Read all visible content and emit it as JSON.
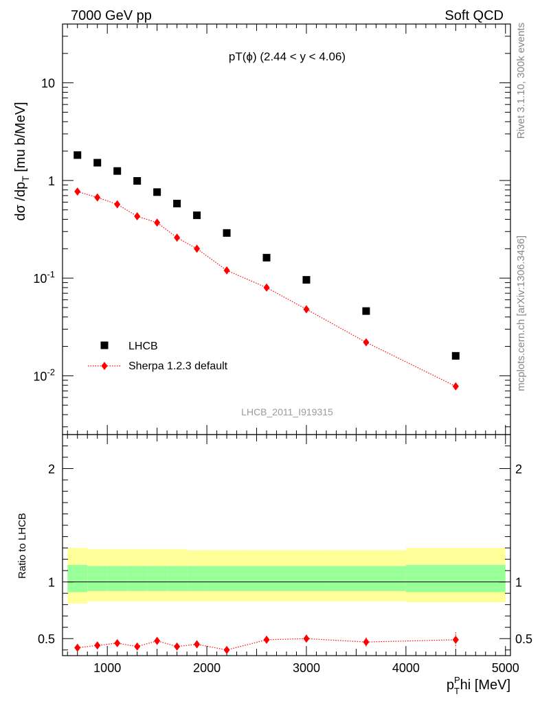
{
  "header": {
    "left": "7000 GeV pp",
    "right": "Soft QCD"
  },
  "side_labels": {
    "rivet": "Rivet 3.1.10,  300k events",
    "mcplots": "mcplots.cern.ch [arXiv:1306.3436]"
  },
  "chart_data": [
    {
      "type": "scatter",
      "panel": "main",
      "title": "pT(ϕ) (2.44 < y < 4.06)",
      "ylabel": "dσ /dp_T [mu b/MeV]",
      "yscale": "log",
      "ylim": [
        0.0025,
        40
      ],
      "xlim": [
        550,
        5050
      ],
      "y_ticks": [
        "10^-2",
        "10^-1",
        "1",
        "10"
      ],
      "legend_position": "bottom-left",
      "watermark": "LHCB_2011_I919315",
      "series": [
        {
          "name": "LHCB",
          "marker": "square",
          "color": "#000000",
          "x": [
            700,
            900,
            1100,
            1300,
            1500,
            1700,
            1900,
            2200,
            2600,
            3000,
            3600,
            4500
          ],
          "y": [
            1.82,
            1.52,
            1.25,
            0.99,
            0.76,
            0.58,
            0.44,
            0.29,
            0.162,
            0.096,
            0.046,
            0.016
          ]
        },
        {
          "name": "Sherpa 1.2.3 default",
          "marker": "diamond",
          "line": "dotted",
          "color": "#ff0000",
          "x": [
            700,
            900,
            1100,
            1300,
            1500,
            1700,
            1900,
            2200,
            2600,
            3000,
            3600,
            4500
          ],
          "y": [
            0.77,
            0.67,
            0.57,
            0.43,
            0.37,
            0.26,
            0.2,
            0.12,
            0.08,
            0.048,
            0.022,
            0.0078
          ]
        }
      ]
    },
    {
      "type": "line",
      "panel": "ratio",
      "ylabel": "Ratio to LHCB",
      "xlabel": "p_T^Phi [MeV]",
      "ylim": [
        0.35,
        2.3
      ],
      "xlim": [
        550,
        5050
      ],
      "x_ticks": [
        1000,
        2000,
        3000,
        4000,
        5000
      ],
      "y_ticks": [
        0.5,
        1,
        2
      ],
      "reference_line": 1,
      "bands": {
        "edges": [
          600,
          800,
          1000,
          1200,
          1400,
          1600,
          1800,
          2000,
          2400,
          2800,
          3200,
          4000,
          5000
        ],
        "inner_hi": [
          1.15,
          1.14,
          1.14,
          1.14,
          1.14,
          1.14,
          1.14,
          1.14,
          1.14,
          1.14,
          1.14,
          1.15
        ],
        "inner_lo": [
          0.91,
          0.92,
          0.92,
          0.92,
          0.92,
          0.92,
          0.92,
          0.92,
          0.92,
          0.92,
          0.92,
          0.91
        ],
        "outer_hi": [
          1.3,
          1.29,
          1.29,
          1.29,
          1.29,
          1.29,
          1.28,
          1.28,
          1.28,
          1.28,
          1.28,
          1.3
        ],
        "outer_lo": [
          0.81,
          0.83,
          0.83,
          0.83,
          0.83,
          0.83,
          0.83,
          0.83,
          0.83,
          0.83,
          0.83,
          0.82
        ],
        "inner_color": "#99ff99",
        "outer_color": "#ffff99"
      },
      "series": [
        {
          "name": "Sherpa 1.2.3 default",
          "color": "#ff0000",
          "x": [
            700,
            900,
            1100,
            1300,
            1500,
            1700,
            1900,
            2200,
            2600,
            3000,
            3600,
            4500
          ],
          "y": [
            0.42,
            0.44,
            0.46,
            0.43,
            0.48,
            0.43,
            0.45,
            0.4,
            0.49,
            0.5,
            0.47,
            0.49
          ],
          "err": [
            0.015,
            0.015,
            0.02,
            0.02,
            0.025,
            0.025,
            0.025,
            0.02,
            0.035,
            0.035,
            0.04,
            0.065
          ]
        }
      ]
    }
  ]
}
